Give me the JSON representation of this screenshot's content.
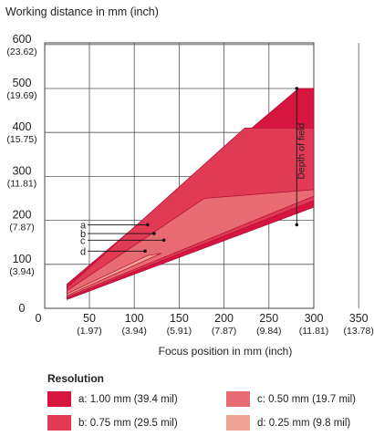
{
  "chart_data": {
    "type": "area",
    "ylabel": "Working distance in mm (inch)",
    "xlabel": "Focus position in mm (inch)",
    "x_ticks": [
      {
        "value": 0,
        "label": "0",
        "sub": ""
      },
      {
        "value": 50,
        "label": "50",
        "sub": "(1.97)"
      },
      {
        "value": 100,
        "label": "100",
        "sub": "(3.94)"
      },
      {
        "value": 150,
        "label": "150",
        "sub": "(5.91)"
      },
      {
        "value": 200,
        "label": "200",
        "sub": "(7.87)"
      },
      {
        "value": 250,
        "label": "250",
        "sub": "(9.84)"
      },
      {
        "value": 300,
        "label": "300",
        "sub": "(11.81)"
      },
      {
        "value": 350,
        "label": "350",
        "sub": "(13.78)"
      }
    ],
    "y_ticks": [
      {
        "value": 0,
        "label": "0",
        "sub": ""
      },
      {
        "value": 100,
        "label": "100",
        "sub": "(3.94)"
      },
      {
        "value": 200,
        "label": "200",
        "sub": "(7.87)"
      },
      {
        "value": 300,
        "label": "300",
        "sub": "(11.81)"
      },
      {
        "value": 400,
        "label": "400",
        "sub": "(15.75)"
      },
      {
        "value": 500,
        "label": "500",
        "sub": "(19.69)"
      },
      {
        "value": 600,
        "label": "600",
        "sub": "(23.62)"
      }
    ],
    "xlim": [
      0,
      350
    ],
    "ylim": [
      0,
      600
    ],
    "grid": true,
    "series": [
      {
        "key": "a",
        "color": "#d6163f",
        "polygon": [
          [
            25,
            55
          ],
          [
            283,
            500
          ],
          [
            300,
            500
          ],
          [
            300,
            230
          ],
          [
            25,
            20
          ]
        ]
      },
      {
        "key": "b",
        "color": "#e03a55",
        "polygon": [
          [
            25,
            47
          ],
          [
            223,
            410
          ],
          [
            300,
            410
          ],
          [
            300,
            245
          ],
          [
            25,
            23
          ]
        ]
      },
      {
        "key": "c",
        "color": "#e86b74",
        "polygon": [
          [
            25,
            40
          ],
          [
            178,
            250
          ],
          [
            300,
            270
          ],
          [
            300,
            255
          ],
          [
            25,
            26
          ]
        ]
      },
      {
        "key": "d",
        "color": "#f1a493",
        "polygon": [
          [
            25,
            33
          ],
          [
            115,
            120
          ],
          [
            130,
            125
          ],
          [
            25,
            29
          ]
        ]
      }
    ],
    "annotations": [
      {
        "label": "a",
        "y": 190,
        "x_end": 115
      },
      {
        "label": "b",
        "y": 170,
        "x_end": 122
      },
      {
        "label": "c",
        "y": 155,
        "x_end": 133
      },
      {
        "label": "d",
        "y": 130,
        "x_end": 112
      }
    ],
    "depth_of_field_label": "Depth of field",
    "depth_of_field_x": 281,
    "depth_of_field_range": [
      190,
      500
    ],
    "legend": {
      "title": "Resolution",
      "items": [
        {
          "key": "a",
          "label": "a: 1.00 mm (39.4 mil)",
          "color": "#d6163f"
        },
        {
          "key": "c",
          "label": "c: 0.50 mm (19.7 mil)",
          "color": "#e86b74"
        },
        {
          "key": "b",
          "label": "b: 0.75 mm (29.5 mil)",
          "color": "#e03a55"
        },
        {
          "key": "d",
          "label": "d: 0.25 mm (9.8 mil)",
          "color": "#f1a493"
        }
      ]
    }
  }
}
